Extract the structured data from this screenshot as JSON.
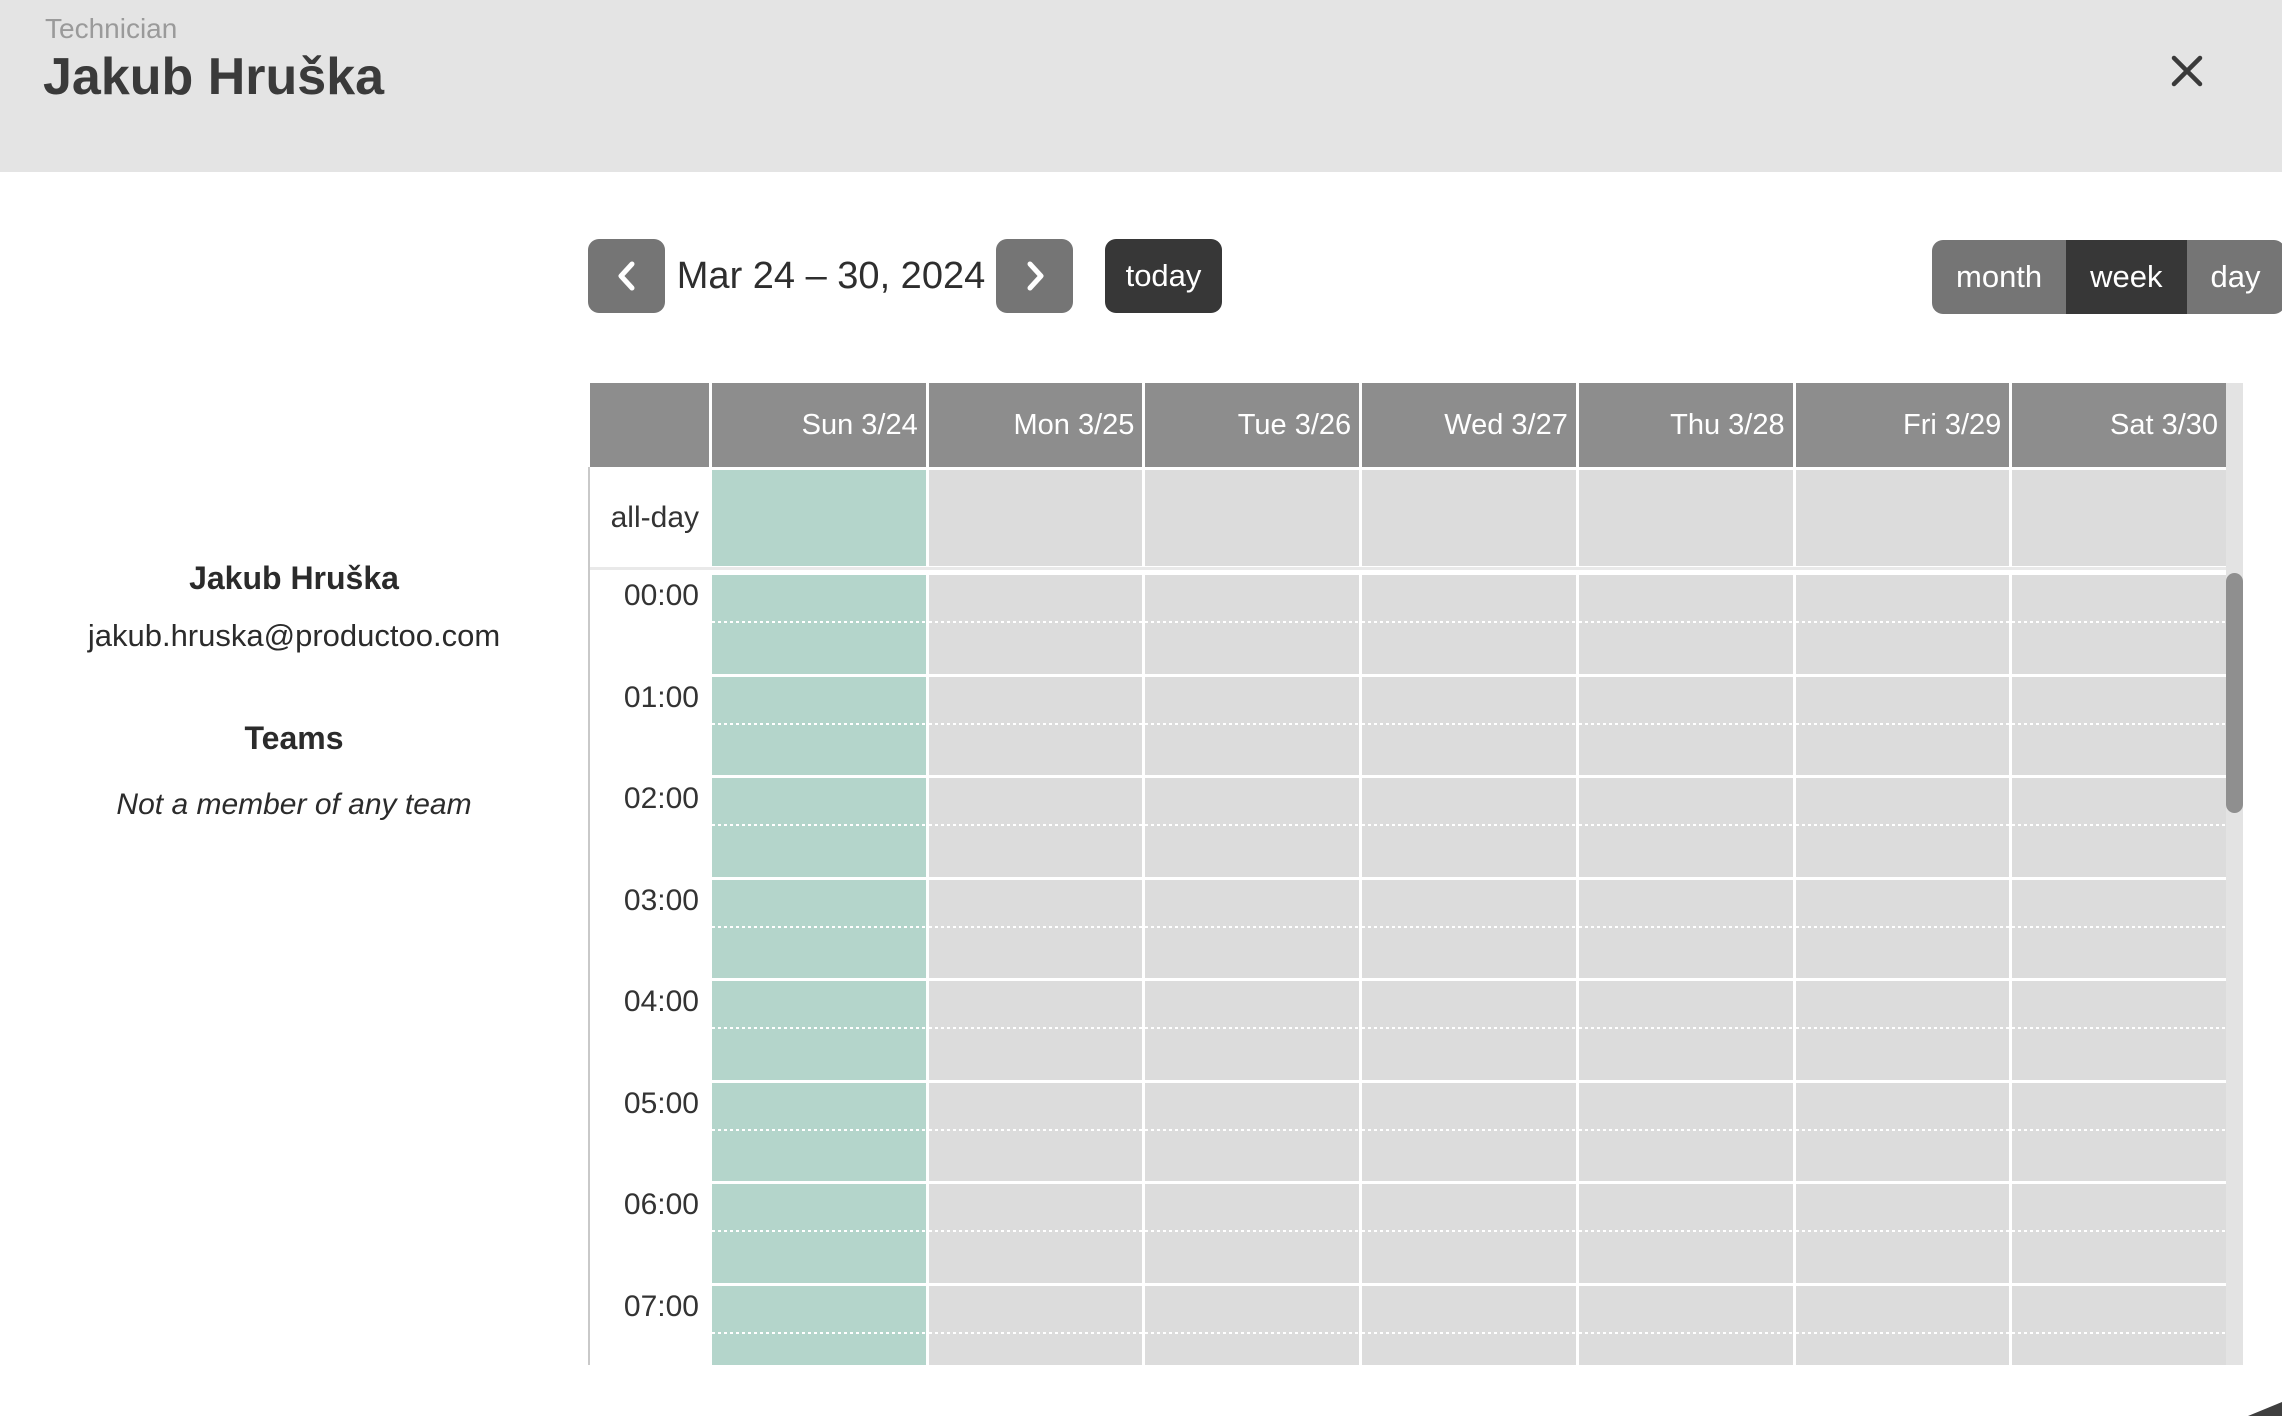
{
  "header": {
    "context_label": "Technician",
    "title": "Jakub Hruška"
  },
  "profile": {
    "name": "Jakub Hruška",
    "email": "jakub.hruska@productoo.com",
    "teams_heading": "Teams",
    "teams_empty_text": "Not a member of any team"
  },
  "toolbar": {
    "date_range_title": "Mar 24 – 30, 2024",
    "today_label": "today",
    "views": [
      {
        "label": "month",
        "active": false
      },
      {
        "label": "week",
        "active": true
      },
      {
        "label": "day",
        "active": false
      }
    ]
  },
  "calendar": {
    "all_day_label": "all-day",
    "days": [
      {
        "label": "Sun 3/24",
        "is_today": true
      },
      {
        "label": "Mon 3/25",
        "is_today": false
      },
      {
        "label": "Tue 3/26",
        "is_today": false
      },
      {
        "label": "Wed 3/27",
        "is_today": false
      },
      {
        "label": "Thu 3/28",
        "is_today": false
      },
      {
        "label": "Fri 3/29",
        "is_today": false
      },
      {
        "label": "Sat 3/30",
        "is_today": false
      }
    ],
    "hours": [
      "00:00",
      "01:00",
      "02:00",
      "03:00",
      "04:00",
      "05:00",
      "06:00",
      "07:00"
    ],
    "events": [],
    "colors": {
      "today_column": "#b4d5cb",
      "weekday_column": "#dcdcdc",
      "header_cell": "#8d8d8d",
      "accent_dark": "#373737",
      "button_gray": "#757575",
      "banner_bg": "#e4e4e4"
    }
  }
}
